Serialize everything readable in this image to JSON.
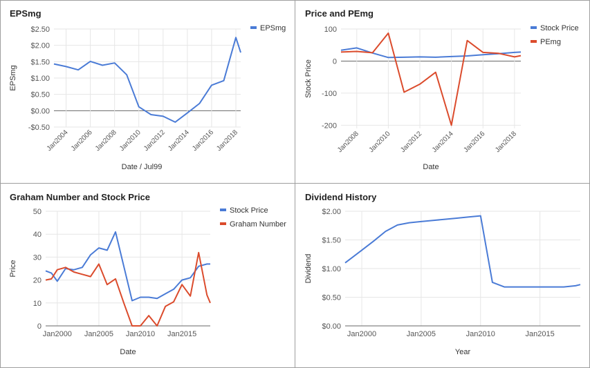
{
  "colors": {
    "blue": "#4a7bd6",
    "red": "#db4b2c",
    "grid": "#e6e6e6",
    "zero": "#666666",
    "text": "#555555"
  },
  "chart_data": [
    {
      "type": "line",
      "title": "EPSmg",
      "xlabel": "Date / Jul99",
      "ylabel": "EPSmg",
      "ylim": [
        -0.5,
        2.5
      ],
      "yticks": [
        -0.5,
        0,
        0.5,
        1,
        1.5,
        2,
        2.5
      ],
      "ytick_labels": [
        "-$0.50",
        "$0.00",
        "$0.50",
        "$1.00",
        "$1.50",
        "$2.00",
        "$2.50"
      ],
      "xlim": [
        2003,
        2018.4
      ],
      "xticks": [
        2004,
        2006,
        2008,
        2010,
        2012,
        2014,
        2016,
        2018
      ],
      "xtick_labels": [
        "Jan2004",
        "Jan2006",
        "Jan2008",
        "Jan2010",
        "Jan2012",
        "Jan2014",
        "Jan2016",
        "Jan2018"
      ],
      "x_label_rotate": true,
      "legend": "top-right",
      "series": [
        {
          "name": "EPSmg",
          "color": "#4a7bd6",
          "x": [
            2003.0,
            2004.0,
            2005.0,
            2006.0,
            2007.0,
            2008.0,
            2009.0,
            2010.0,
            2011.0,
            2012.0,
            2013.0,
            2014.0,
            2015.0,
            2016.0,
            2017.0,
            2018.0,
            2018.4
          ],
          "y": [
            1.43,
            1.35,
            1.25,
            1.51,
            1.39,
            1.46,
            1.1,
            0.12,
            -0.12,
            -0.17,
            -0.35,
            -0.07,
            0.22,
            0.78,
            0.92,
            2.24,
            1.78
          ]
        }
      ]
    },
    {
      "type": "line",
      "title": "Price and PEmg",
      "xlabel": "Date",
      "ylabel": "Stock Price",
      "ylim": [
        -210,
        100
      ],
      "yticks": [
        -200,
        -100,
        0,
        100
      ],
      "ytick_labels": [
        "-200",
        "-100",
        "0",
        "100"
      ],
      "xlim": [
        2007,
        2018.4
      ],
      "xticks": [
        2008,
        2010,
        2012,
        2014,
        2016,
        2018
      ],
      "xtick_labels": [
        "Jan2008",
        "Jan2010",
        "Jan2012",
        "Jan2014",
        "Jan2016",
        "Jan2018"
      ],
      "x_label_rotate": true,
      "legend": "top-right",
      "series": [
        {
          "name": "Stock Price",
          "color": "#4a7bd6",
          "x": [
            2007.0,
            2008.0,
            2009.0,
            2010.0,
            2011.0,
            2012.0,
            2013.0,
            2014.0,
            2015.0,
            2016.0,
            2017.0,
            2018.0,
            2018.4
          ],
          "y": [
            34,
            41,
            25,
            11,
            12,
            13,
            12,
            14,
            16,
            20,
            23,
            27,
            28
          ]
        },
        {
          "name": "PEmg",
          "color": "#db4b2c",
          "x": [
            2007.0,
            2008.0,
            2009.0,
            2010.0,
            2011.0,
            2012.0,
            2013.0,
            2014.0,
            2015.0,
            2016.0,
            2017.0,
            2018.0,
            2018.4
          ],
          "y": [
            28,
            30,
            26,
            87,
            -97,
            -72,
            -35,
            -200,
            64,
            27,
            24,
            13,
            17
          ]
        }
      ]
    },
    {
      "type": "line",
      "title": "Graham Number and Stock Price",
      "xlabel": "Date",
      "ylabel": "Price",
      "ylim": [
        0,
        50
      ],
      "yticks": [
        0,
        10,
        20,
        30,
        40,
        50
      ],
      "ytick_labels": [
        "0",
        "10",
        "20",
        "30",
        "40",
        "50"
      ],
      "xlim": [
        1998.6,
        2018.4
      ],
      "xticks": [
        2000,
        2005,
        2010,
        2015
      ],
      "xtick_labels": [
        "Jan2000",
        "Jan2005",
        "Jan2010",
        "Jan2015"
      ],
      "x_label_rotate": false,
      "legend": "top-right",
      "series": [
        {
          "name": "Stock Price",
          "color": "#4a7bd6",
          "x": [
            1998.6,
            1999.3,
            2000.0,
            2001.0,
            2002.0,
            2003.0,
            2004.0,
            2005.0,
            2006.0,
            2007.0,
            2008.0,
            2009.0,
            2010.0,
            2011.0,
            2012.0,
            2013.0,
            2014.0,
            2015.0,
            2016.0,
            2017.0,
            2018.0,
            2018.4
          ],
          "y": [
            24,
            23,
            19.5,
            25,
            24.5,
            25.5,
            31,
            34,
            33,
            41,
            26,
            11,
            12.5,
            12.5,
            12,
            14,
            16,
            20,
            21,
            26,
            27,
            27
          ]
        },
        {
          "name": "Graham Number",
          "color": "#db4b2c",
          "x": [
            1998.6,
            1999.3,
            2000.0,
            2001.0,
            2002.0,
            2003.0,
            2004.0,
            2005.0,
            2006.0,
            2007.0,
            2008.0,
            2009.0,
            2010.0,
            2011.0,
            2012.0,
            2013.0,
            2014.0,
            2015.0,
            2016.0,
            2017.0,
            2018.0,
            2018.4
          ],
          "y": [
            20,
            20.5,
            24.5,
            25.5,
            23.5,
            22.5,
            21.5,
            27,
            18,
            20.5,
            10,
            -0.5,
            -0.5,
            4.5,
            -0.5,
            8.5,
            10.5,
            18,
            13,
            32,
            13.5,
            10
          ]
        }
      ]
    },
    {
      "type": "line",
      "title": "Dividend History",
      "xlabel": "Year",
      "ylabel": "Dividend",
      "ylim": [
        0,
        2
      ],
      "yticks": [
        0,
        0.5,
        1,
        1.5,
        2
      ],
      "ytick_labels": [
        "$0.00",
        "$0.50",
        "$1.00",
        "$1.50",
        "$2.00"
      ],
      "xlim": [
        1998.6,
        2018.4
      ],
      "xticks": [
        2000,
        2005,
        2010,
        2015
      ],
      "xtick_labels": [
        "Jan2000",
        "Jan2005",
        "Jan2010",
        "Jan2015"
      ],
      "x_label_rotate": false,
      "legend": "none",
      "series": [
        {
          "name": "",
          "color": "#4a7bd6",
          "x": [
            1998.6,
            2000.0,
            2001.0,
            2002.0,
            2003.0,
            2004.0,
            2005.0,
            2006.0,
            2007.0,
            2008.0,
            2009.0,
            2010.0,
            2011.0,
            2012.0,
            2013.0,
            2014.0,
            2015.0,
            2016.0,
            2017.0,
            2018.0,
            2018.4
          ],
          "y": [
            1.1,
            1.32,
            1.48,
            1.65,
            1.76,
            1.8,
            1.82,
            1.84,
            1.86,
            1.88,
            1.9,
            1.92,
            0.76,
            0.68,
            0.68,
            0.68,
            0.68,
            0.68,
            0.68,
            0.7,
            0.72
          ]
        }
      ]
    }
  ]
}
